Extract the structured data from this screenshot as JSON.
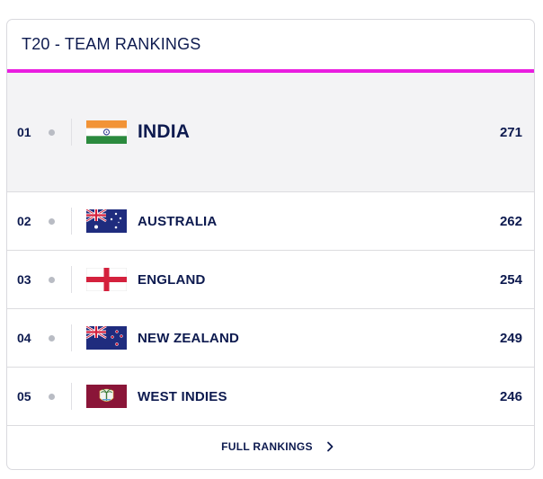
{
  "header": {
    "title": "T20 - TEAM RANKINGS"
  },
  "accent_color": "#e91ee0",
  "rankings": [
    {
      "rank": "01",
      "team": "INDIA",
      "points": "271",
      "flag": "india-flag-icon"
    },
    {
      "rank": "02",
      "team": "AUSTRALIA",
      "points": "262",
      "flag": "australia-flag-icon"
    },
    {
      "rank": "03",
      "team": "ENGLAND",
      "points": "254",
      "flag": "england-flag-icon"
    },
    {
      "rank": "04",
      "team": "NEW ZEALAND",
      "points": "249",
      "flag": "new-zealand-flag-icon"
    },
    {
      "rank": "05",
      "team": "WEST INDIES",
      "points": "246",
      "flag": "west-indies-flag-icon"
    }
  ],
  "footer": {
    "link_label": "FULL RANKINGS",
    "icon": "chevron-right-icon"
  }
}
